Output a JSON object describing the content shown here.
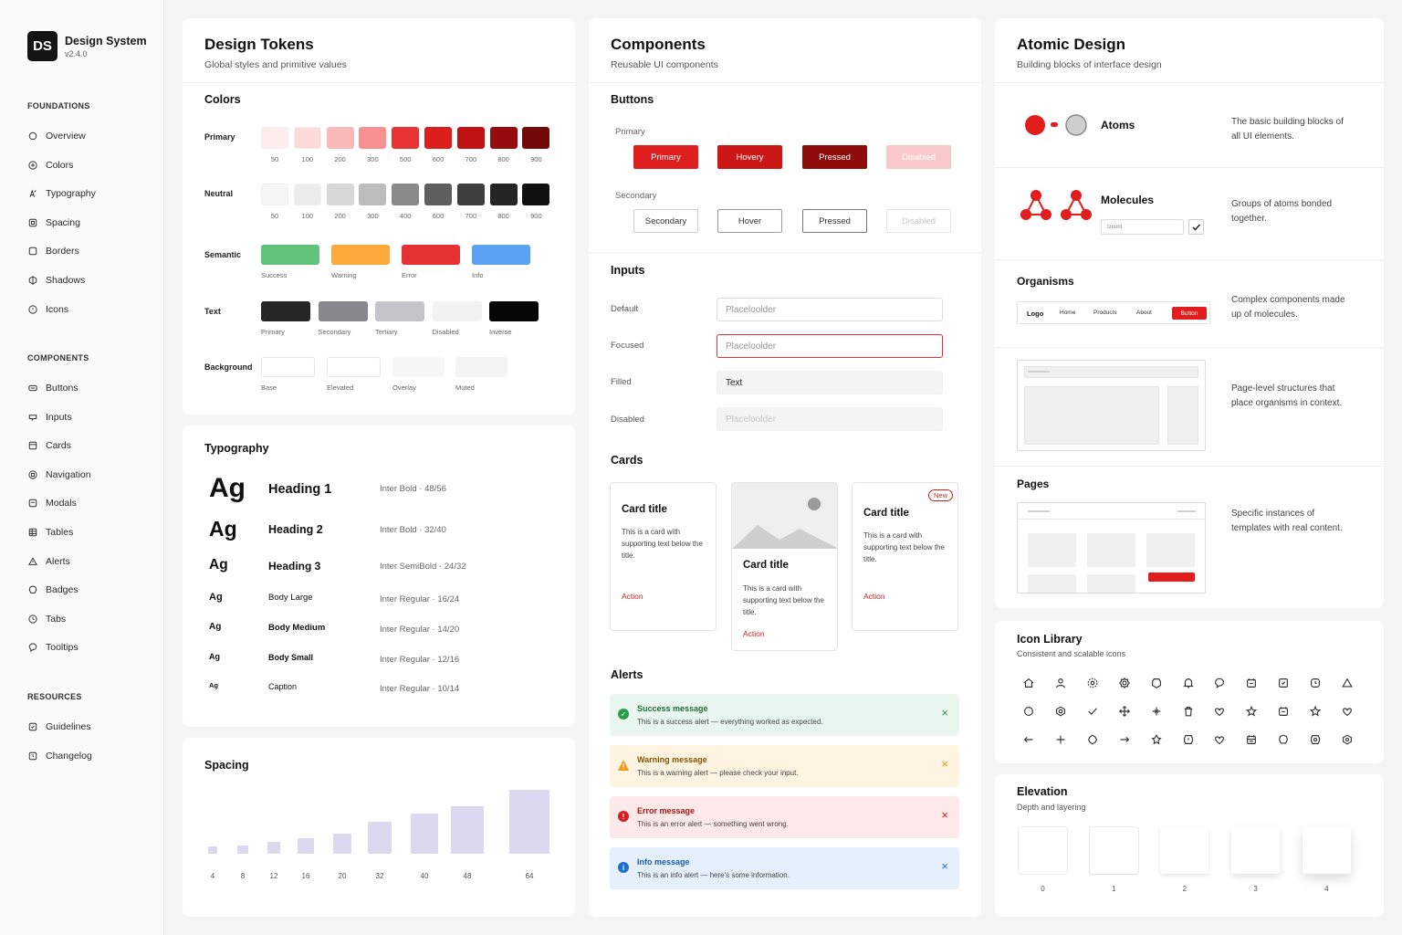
{
  "brand": {
    "logo": "DS",
    "name": "Design System",
    "version": "v2.4.0"
  },
  "sidebar": {
    "sections": [
      {
        "title": "FOUNDATIONS",
        "items": [
          {
            "label": "Overview",
            "icon": "circle-icon"
          },
          {
            "label": "Colors",
            "icon": "palette-icon"
          },
          {
            "label": "Typography",
            "icon": "type-icon"
          },
          {
            "label": "Spacing",
            "icon": "spacing-icon"
          },
          {
            "label": "Borders",
            "icon": "border-icon"
          },
          {
            "label": "Shadows",
            "icon": "shadow-icon"
          },
          {
            "label": "Icons",
            "icon": "icons-icon"
          }
        ]
      },
      {
        "title": "COMPONENTS",
        "items": [
          {
            "label": "Buttons",
            "icon": "button-icon"
          },
          {
            "label": "Inputs",
            "icon": "input-icon"
          },
          {
            "label": "Cards",
            "icon": "card-icon"
          },
          {
            "label": "Navigation",
            "icon": "navigation-icon"
          },
          {
            "label": "Modals",
            "icon": "modal-icon"
          },
          {
            "label": "Tables",
            "icon": "table-icon"
          },
          {
            "label": "Alerts",
            "icon": "alert-icon"
          },
          {
            "label": "Badges",
            "icon": "badge-icon"
          },
          {
            "label": "Tabs",
            "icon": "tabs-icon"
          },
          {
            "label": "Tooltips",
            "icon": "tooltip-icon"
          }
        ]
      },
      {
        "title": "RESOURCES",
        "items": [
          {
            "label": "Guidelines",
            "icon": "guidelines-icon"
          },
          {
            "label": "Changelog",
            "icon": "changelog-icon"
          }
        ]
      }
    ]
  },
  "tokens": {
    "title": "Design Tokens",
    "subtitle": "Global styles and primitive values",
    "colors_title": "Colors",
    "primary": {
      "label": "Primary",
      "swatches": [
        {
          "name": "50",
          "color": "#fdecec"
        },
        {
          "name": "100",
          "color": "#fcdada"
        },
        {
          "name": "200",
          "color": "#fbb8b8"
        },
        {
          "name": "300",
          "color": "#f79090"
        },
        {
          "name": "500",
          "color": "#ea3434"
        },
        {
          "name": "600",
          "color": "#de1d1d"
        },
        {
          "name": "700",
          "color": "#c01212"
        },
        {
          "name": "800",
          "color": "#960b0b"
        },
        {
          "name": "900",
          "color": "#730909"
        }
      ]
    },
    "neutral": {
      "label": "Neutral",
      "swatches": [
        {
          "name": "50",
          "color": "#f6f6f6"
        },
        {
          "name": "100",
          "color": "#ececec"
        },
        {
          "name": "200",
          "color": "#d7d7d7"
        },
        {
          "name": "300",
          "color": "#bcbcbc"
        },
        {
          "name": "400",
          "color": "#8a8a8a"
        },
        {
          "name": "600",
          "color": "#5e5e5e"
        },
        {
          "name": "700",
          "color": "#3e3e3e"
        },
        {
          "name": "800",
          "color": "#252525"
        },
        {
          "name": "900",
          "color": "#111111"
        }
      ]
    },
    "semantic": {
      "label": "Semantic",
      "swatches": [
        {
          "name": "Success",
          "color": "#62c27a"
        },
        {
          "name": "Warning",
          "color": "#fba93a"
        },
        {
          "name": "Error",
          "color": "#e63232"
        },
        {
          "name": "Info",
          "color": "#5aa3f2"
        }
      ]
    },
    "text": {
      "label": "Text",
      "swatches": [
        {
          "name": "Primary",
          "color": "#262626"
        },
        {
          "name": "Secondary",
          "color": "#85878c"
        },
        {
          "name": "Tertiary",
          "color": "#c4c5c8"
        },
        {
          "name": "Disabled",
          "color": "#f2f2f2"
        },
        {
          "name": "Inverse",
          "color": "#050505"
        }
      ]
    },
    "background": {
      "label": "Background",
      "swatches": [
        {
          "name": "Base",
          "color": "#ffffff"
        },
        {
          "name": "Elevated",
          "color": "#ffffff"
        },
        {
          "name": "Overlay",
          "color": "#f7f7f7"
        },
        {
          "name": "Muted",
          "color": "#f3f3f3"
        }
      ]
    }
  },
  "typography": {
    "title": "Typography",
    "rows": [
      {
        "sample": "Ag",
        "name": "Heading 1",
        "spec": "Inter Bold · 48/56"
      },
      {
        "sample": "Ag",
        "name": "Heading 2",
        "spec": "Inter Bold · 32/40"
      },
      {
        "sample": "Ag",
        "name": "Heading 3",
        "spec": "Inter SemiBold · 24/32"
      },
      {
        "sample": "Ag",
        "name": "Body Large",
        "spec": "Inter Regular · 16/24"
      },
      {
        "sample": "Ag",
        "name": "Body Medium",
        "spec": "Inter Regular · 14/20"
      },
      {
        "sample": "Ag",
        "name": "Body Small",
        "spec": "Inter Regular · 12/16"
      },
      {
        "sample": "Ag",
        "name": "Caption",
        "spec": "Inter Regular · 10/14"
      }
    ]
  },
  "spacing": {
    "title": "Spacing",
    "values": [
      4,
      8,
      12,
      16,
      20,
      32,
      40,
      48,
      64
    ]
  },
  "components": {
    "title": "Components",
    "subtitle": "Reusable UI components",
    "buttons": {
      "title": "Buttons",
      "primary_label": "Primary",
      "primary": [
        "Primary",
        "Hovery",
        "Pressed",
        "Disabled"
      ],
      "secondary_label": "Secondary",
      "secondary": [
        "Secondary",
        "Hover",
        "Pressed",
        "Disabled"
      ]
    },
    "inputs": {
      "title": "Inputs",
      "rows": [
        {
          "label": "Default",
          "value": "Placeloolder"
        },
        {
          "label": "Focused",
          "value": "Placeloolder"
        },
        {
          "label": "Filled",
          "value": "Text"
        },
        {
          "label": "Disabled",
          "value": "Placeloolder"
        }
      ]
    },
    "cards": {
      "title": "Cards",
      "items": [
        {
          "title": "Card title",
          "body": "This is a card with supporting text below the title.",
          "action": "Action"
        },
        {
          "title": "Card title",
          "body": "This is a card with supporting text below the title.",
          "action": "Action"
        },
        {
          "title": "Card title",
          "body": "This is a card with supporting text below the title.",
          "action": "Action",
          "badge": "New"
        }
      ]
    },
    "alerts": {
      "title": "Alerts",
      "items": [
        {
          "title": "Success message",
          "message": "This is a success alert — everything worked as expected.",
          "bg": "#eaf7ee",
          "accent": "#2a9d4b",
          "title_color": "#1f6e36"
        },
        {
          "title": "Warning message",
          "message": "This is a warning alert — please check your input.",
          "bg": "#fff3e2",
          "accent": "#f09a12",
          "title_color": "#8a5200"
        },
        {
          "title": "Error message",
          "message": "This is an error alert — something went wrong.",
          "bg": "#fde9e9",
          "accent": "#d42020",
          "title_color": "#a81515"
        },
        {
          "title": "Info message",
          "message": "This is an info alert — here's some information.",
          "bg": "#e6f0fd",
          "accent": "#1f6fd6",
          "title_color": "#1559b0"
        }
      ]
    }
  },
  "atomic": {
    "title": "Atomic Design",
    "subtitle": "Building blocks of interface design",
    "atoms": {
      "label": "Atoms",
      "desc": "The basic building blocks of all UI elements."
    },
    "molecules": {
      "label": "Molecules",
      "desc": "Groups of atoms bonded together.",
      "input_text": "Iznont"
    },
    "organisms": {
      "label": "Organisms",
      "desc": "Complex components made up of molecules.",
      "nav": {
        "logo": "Logo",
        "links": [
          "Home",
          "Products",
          "About"
        ],
        "button": "Button"
      }
    },
    "templates": {
      "desc": "Page-level structures that place organisms in context."
    },
    "pages": {
      "label": "Pages",
      "desc": "Specific instances of templates with real content."
    }
  },
  "icon_library": {
    "title": "Icon Library",
    "subtitle": "Consistent and scalable icons",
    "icons": [
      "home-icon",
      "user-icon",
      "settings-icon",
      "gear-icon",
      "shield-icon",
      "bell-icon",
      "chat-icon",
      "calendar-icon",
      "check-square-icon",
      "clock-icon",
      "warning-icon",
      "circle-icon",
      "hexagon-icon",
      "checkmark-icon",
      "move-icon",
      "plus-cross-icon",
      "trash-icon",
      "heart-icon",
      "star-icon",
      "calendar-icon",
      "star-outline-icon",
      "heart-outline-icon",
      "arrow-left-icon",
      "plus-icon",
      "compass-icon",
      "arrow-right-icon",
      "pin-icon",
      "timer-icon",
      "like-icon",
      "calendar-grid-icon",
      "badge-icon",
      "cog-icon",
      "hex-gear-icon"
    ]
  },
  "elevation": {
    "title": "Elevation",
    "subtitle": "Depth and layering",
    "levels": [
      "0",
      "1",
      "2",
      "3",
      "4"
    ]
  }
}
